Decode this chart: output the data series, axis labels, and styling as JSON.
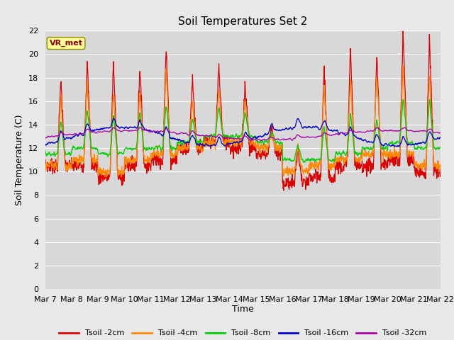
{
  "title": "Soil Temperatures Set 2",
  "xlabel": "Time",
  "ylabel": "Soil Temperature (C)",
  "ylim": [
    0,
    22
  ],
  "yticks": [
    0,
    2,
    4,
    6,
    8,
    10,
    12,
    14,
    16,
    18,
    20,
    22
  ],
  "x_labels": [
    "Mar 7",
    "Mar 8",
    "Mar 9",
    "Mar 10",
    "Mar 11",
    "Mar 12",
    "Mar 13",
    "Mar 14",
    "Mar 15",
    "Mar 16",
    "Mar 17",
    "Mar 18",
    "Mar 19",
    "Mar 20",
    "Mar 21",
    "Mar 22"
  ],
  "series_colors": [
    "#dd0000",
    "#ff8800",
    "#00cc00",
    "#0000cc",
    "#aa00aa"
  ],
  "series_labels": [
    "Tsoil -2cm",
    "Tsoil -4cm",
    "Tsoil -8cm",
    "Tsoil -16cm",
    "Tsoil -32cm"
  ],
  "bg_color": "#e8e8e8",
  "plot_bg_color": "#d8d8d8",
  "grid_color": "#ffffff",
  "annotation_text": "VR_met",
  "title_fontsize": 11,
  "label_fontsize": 9,
  "tick_fontsize": 8
}
